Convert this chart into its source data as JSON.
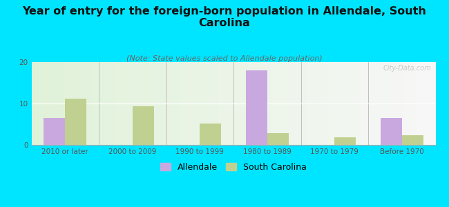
{
  "title": "Year of entry for the foreign-born population in Allendale, South\nCarolina",
  "subtitle": "(Note: State values scaled to Allendale population)",
  "categories": [
    "2010 or later",
    "2000 to 2009",
    "1990 to 1999",
    "1980 to 1989",
    "1970 to 1979",
    "Before 1970"
  ],
  "allendale_values": [
    6.5,
    0,
    0,
    18,
    0,
    6.5
  ],
  "sc_values": [
    11.2,
    9.3,
    5.2,
    2.8,
    1.8,
    2.3
  ],
  "allendale_color": "#c9a8e0",
  "sc_color": "#c0d090",
  "background_color": "#00e5ff",
  "ylim": [
    0,
    20
  ],
  "yticks": [
    0,
    10,
    20
  ],
  "bar_width": 0.32,
  "title_fontsize": 11.5,
  "subtitle_fontsize": 8,
  "tick_fontsize": 7.5,
  "legend_fontsize": 9,
  "watermark": "City-Data.com"
}
